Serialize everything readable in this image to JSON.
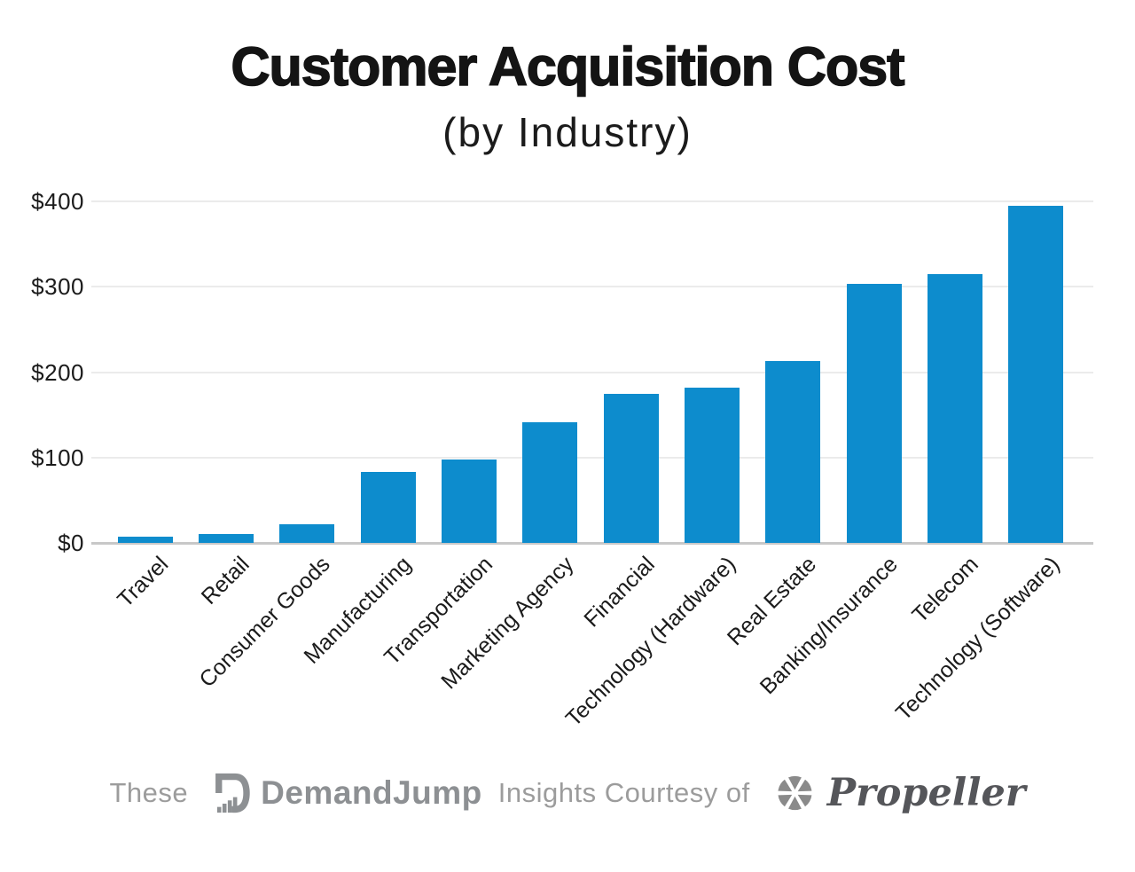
{
  "header": {
    "title": "Customer Acquisition Cost",
    "subtitle": "(by Industry)"
  },
  "chart_data": {
    "type": "bar",
    "title": "Customer Acquisition Cost",
    "subtitle": "(by Industry)",
    "categories": [
      "Travel",
      "Retail",
      "Consumer Goods",
      "Manufacturing",
      "Transportation",
      "Marketing Agency",
      "Financial",
      "Technology (Hardware)",
      "Real Estate",
      "Banking/Insurance",
      "Telecom",
      "Technology (Software)"
    ],
    "values": [
      7,
      10,
      22,
      83,
      98,
      141,
      175,
      182,
      213,
      303,
      315,
      395
    ],
    "xlabel": "",
    "ylabel": "",
    "ylim": [
      0,
      400
    ],
    "yticks": [
      0,
      100,
      200,
      300,
      400
    ],
    "ytick_labels": [
      "$0",
      "$100",
      "$200",
      "$300",
      "$400"
    ],
    "grid": "horizontal",
    "legend": "none",
    "bar_color": "#0d8ccd"
  },
  "footer": {
    "prefix": "These",
    "demandjump_label": "DemandJump",
    "middle": "Insights Courtesy of",
    "propeller_label": "Propeller"
  },
  "icons": {
    "demandjump_logo": "d-with-ascending-bars-icon",
    "propeller_logo": "fan-wedges-icon"
  },
  "colors": {
    "bar": "#0d8ccd",
    "gridline": "#ebebeb",
    "axis_line": "#c8c8c8",
    "title_text": "#141414",
    "tick_text": "#1b1b1b",
    "footer_text": "#9c9c9c",
    "demandjump_gray": "#8d9093",
    "propeller_gray": "#55565a"
  }
}
